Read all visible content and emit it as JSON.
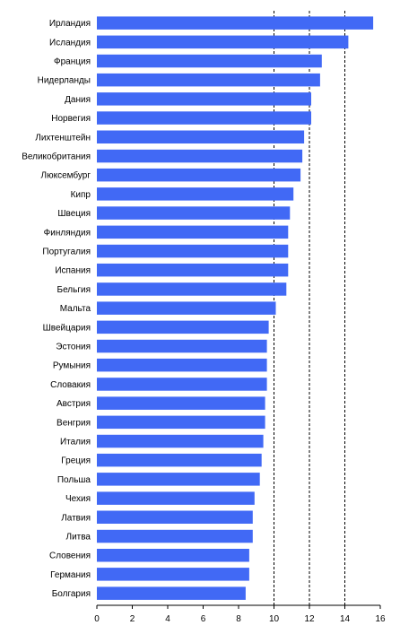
{
  "chart_data": {
    "type": "bar",
    "orientation": "horizontal",
    "categories": [
      "Ирландия",
      "Исландия",
      "Франция",
      "Нидерланды",
      "Дания",
      "Норвегия",
      "Лихтенштейн",
      "Великобритания",
      "Люксембург",
      "Кипр",
      "Швеция",
      "Финляндия",
      "Португалия",
      "Испания",
      "Бельгия",
      "Мальта",
      "Швейцария",
      "Эстония",
      "Румыния",
      "Словакия",
      "Австрия",
      "Венгрия",
      "Италия",
      "Греция",
      "Польша",
      "Чехия",
      "Латвия",
      "Литва",
      "Словения",
      "Германия",
      "Болгария"
    ],
    "values": [
      15.6,
      14.2,
      12.7,
      12.6,
      12.1,
      12.1,
      11.7,
      11.6,
      11.5,
      11.1,
      10.9,
      10.8,
      10.8,
      10.8,
      10.7,
      10.1,
      9.7,
      9.6,
      9.6,
      9.6,
      9.5,
      9.5,
      9.4,
      9.3,
      9.2,
      8.9,
      8.8,
      8.8,
      8.6,
      8.6,
      8.4
    ],
    "xlim": [
      0,
      16
    ],
    "x_ticks": [
      "0",
      "2",
      "4",
      "6",
      "8",
      "10",
      "12",
      "14",
      "16"
    ],
    "gridlines": [
      10,
      12,
      14
    ],
    "bar_color": "#4169f5",
    "title": "",
    "xlabel": "",
    "ylabel": ""
  }
}
